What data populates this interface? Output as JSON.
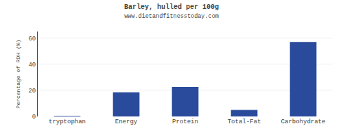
{
  "chart_data": {
    "type": "bar",
    "title": "Barley, hulled per 100g",
    "subtitle": "www.dietandfitnesstoday.com",
    "categories": [
      "tryptophan",
      "Energy",
      "Protein",
      "Total-Fat",
      "Carbohydrate"
    ],
    "values": [
      0.5,
      18.5,
      22.5,
      5.0,
      57.0
    ],
    "color": "#2a4b9b",
    "ylabel": "Percentage of RDH (%)",
    "ylim": [
      0,
      65
    ],
    "yticks": [
      0,
      20,
      40,
      60
    ],
    "grid": true
  }
}
